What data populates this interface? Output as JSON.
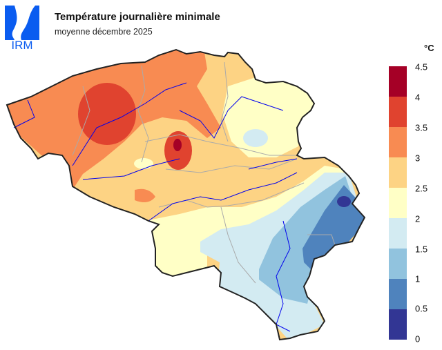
{
  "logo": {
    "text": "IRM",
    "color": "#0a5cf0"
  },
  "title": "Température journalière minimale",
  "subtitle": "moyenne décembre 2025",
  "legend": {
    "unit": "°C",
    "ticks": [
      "4.5",
      "4",
      "3.5",
      "3",
      "2.5",
      "2",
      "1.5",
      "1",
      "0.5",
      "0"
    ],
    "classes": [
      {
        "range": [
          4,
          4.5
        ],
        "color": "#a50026"
      },
      {
        "range": [
          3.5,
          4
        ],
        "color": "#e0432f"
      },
      {
        "range": [
          3,
          3.5
        ],
        "color": "#f88b52"
      },
      {
        "range": [
          2.5,
          3
        ],
        "color": "#fdd384"
      },
      {
        "range": [
          2,
          2.5
        ],
        "color": "#ffffc6"
      },
      {
        "range": [
          1.5,
          2
        ],
        "color": "#d3ebf2"
      },
      {
        "range": [
          1,
          1.5
        ],
        "color": "#91c3de"
      },
      {
        "range": [
          0.5,
          1
        ],
        "color": "#4f83bd"
      },
      {
        "range": [
          0,
          0.5
        ],
        "color": "#323694"
      }
    ]
  },
  "map": {
    "region": "Belgium",
    "river_color": "#0000ee",
    "boundary_color": "#aaaaaa"
  }
}
